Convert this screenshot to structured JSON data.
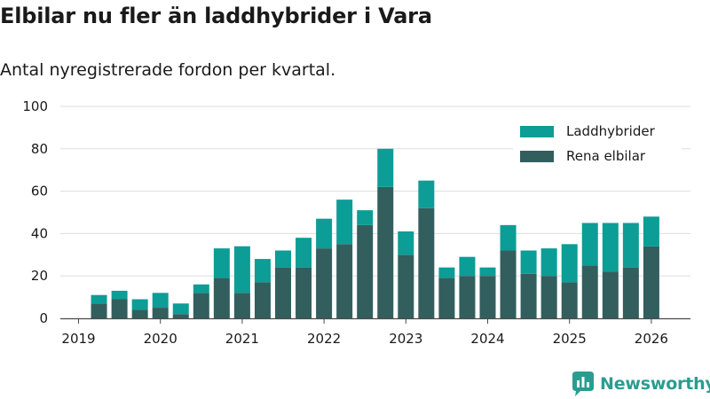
{
  "title": "Elbilar nu fler än laddhybrider i Vara",
  "subtitle": "Antal nyregistrerade fordon per kvartal.",
  "colors": {
    "phev": "#0c9d96",
    "bev": "#335e5e",
    "axis": "#4a4a4a",
    "grid": "#dddddd",
    "brand": "#2a9d8f"
  },
  "brand": {
    "name": "Newsworthy",
    "icon": "newsworthy-logo-icon"
  },
  "chart_data": {
    "type": "bar",
    "stacked": true,
    "title": "Elbilar nu fler än laddhybrider i Vara",
    "subtitle": "Antal nyregistrerade fordon per kvartal.",
    "xlabel": "",
    "ylabel": "",
    "ylim": [
      0,
      100
    ],
    "yticks": [
      0,
      20,
      40,
      60,
      80,
      100
    ],
    "grid": true,
    "legend_position": "top-right",
    "categories": [
      "2019 Q2",
      "2019 Q3",
      "2019 Q4",
      "2020 Q1",
      "2020 Q2",
      "2020 Q3",
      "2020 Q4",
      "2021 Q1",
      "2021 Q2",
      "2021 Q3",
      "2021 Q4",
      "2022 Q1",
      "2022 Q2",
      "2022 Q3",
      "2022 Q4",
      "2023 Q1",
      "2023 Q2",
      "2023 Q3",
      "2023 Q4",
      "2024 Q1",
      "2024 Q2",
      "2024 Q3",
      "2024 Q4",
      "2025 Q1",
      "2025 Q2",
      "2025 Q3",
      "2025 Q4",
      "2026 Q1"
    ],
    "x_tick_labels": [
      "2019",
      "2020",
      "2021",
      "2022",
      "2023",
      "2024",
      "2025",
      "2026"
    ],
    "series": [
      {
        "name": "Rena elbilar",
        "values": [
          7,
          9,
          4,
          5,
          2,
          12,
          19,
          12,
          17,
          24,
          24,
          33,
          35,
          44,
          62,
          30,
          52,
          19,
          20,
          20,
          32,
          21,
          20,
          17,
          25,
          22,
          24,
          34
        ]
      },
      {
        "name": "Laddhybrider",
        "values": [
          4,
          4,
          5,
          7,
          5,
          4,
          14,
          22,
          11,
          8,
          14,
          14,
          21,
          7,
          18,
          11,
          13,
          5,
          9,
          4,
          12,
          11,
          13,
          18,
          20,
          23,
          21,
          14
        ]
      }
    ],
    "legend": [
      "Laddhybrider",
      "Rena elbilar"
    ]
  }
}
